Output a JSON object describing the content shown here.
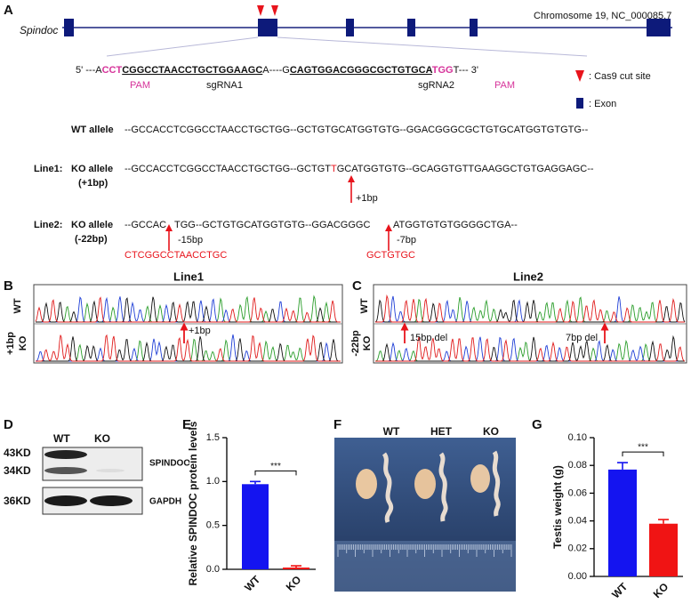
{
  "panel_labels": [
    "A",
    "B",
    "C",
    "D",
    "E",
    "F",
    "G"
  ],
  "panel_a": {
    "gene": "Spindoc",
    "chromosome": "Chromosome 19, NC_000085.7",
    "sequence": [
      "5' ---A",
      "CCT",
      "CGGCCTAACCTGCTGGAAGC",
      "A----G",
      "CAGTGGACGGGCGCTGTGCA",
      "TGG",
      "T---  3'"
    ],
    "pam1": "PAM",
    "sgrna1": "sgRNA1",
    "sgrna2": "sgRNA2",
    "pam2": "PAM",
    "legend": [
      ": Cas9 cut site",
      ": Exon"
    ],
    "wt": {
      "label": "WT allele",
      "sequence": "--GCCACCTCGGCCTAACCTGCTGG--GCTGTGCATGGTGTG--GGACGGGCGCTGTGCATGGTGTGTG--"
    },
    "line1": {
      "line": "Line1:",
      "label": "KO allele",
      "sublabel": "(+1bp)",
      "sequence": [
        "--GCCACCTCGGCCTAACCTGCTGG--GCTGT",
        "T",
        "GCATGGTGTG--GCAGGTGTTGAAGGCTGTGAGGAGC--"
      ],
      "note": "+1bp"
    },
    "line2": {
      "line": "Line2:",
      "label": "KO allele",
      "sublabel": "(-22bp)",
      "sequence": [
        "--GCCAC",
        "TGG--GCTGTGCATGGTGTG--GGACGGGC",
        "ATGGTGTGTGGGGCTGA--"
      ],
      "notes": [
        "-15bp",
        "-7bp"
      ],
      "deleted": [
        "CTCGGCCTAACCTGC",
        "GCTGTGC"
      ]
    }
  },
  "panel_b": {
    "title": "Line1",
    "rows": [
      "WT",
      "+1bp",
      "KO"
    ],
    "note": "+1bp"
  },
  "panel_c": {
    "title": "Line2",
    "rows": [
      "WT",
      "-22bp",
      "KO"
    ],
    "notes": [
      "15bp del",
      "7bp del"
    ]
  },
  "panel_d": {
    "lanes": [
      "WT",
      "KO"
    ],
    "markers": [
      "43KD",
      "34KD",
      "36KD"
    ],
    "proteins": [
      "SPINDOC",
      "GAPDH"
    ]
  },
  "panel_f": {
    "groups": [
      "WT",
      "HET",
      "KO"
    ]
  },
  "chart_data": [
    {
      "type": "bar",
      "y_label": "Relative SPINDOC protein levels",
      "categories": [
        "WT",
        "KO"
      ],
      "values": [
        0.97,
        0.02
      ],
      "errors": [
        0.03,
        0.02
      ],
      "colors": [
        "#1414f0",
        "#f01414"
      ],
      "ylim": [
        0,
        1.5
      ],
      "yticks": [
        {
          "value": 0,
          "label": "0.0"
        },
        {
          "value": 0.5,
          "label": "0.5"
        },
        {
          "value": 1,
          "label": "1.0"
        },
        {
          "value": 1.5,
          "label": "1.5"
        }
      ],
      "significance": "***"
    },
    {
      "type": "bar",
      "y_label": "Testis weight (g)",
      "categories": [
        "WT",
        "KO"
      ],
      "values": [
        0.077,
        0.038
      ],
      "errors": [
        0.005,
        0.003
      ],
      "colors": [
        "#1414f0",
        "#f01414"
      ],
      "ylim": [
        0,
        0.1
      ],
      "yticks": [
        {
          "value": 0,
          "label": "0.00"
        },
        {
          "value": 0.02,
          "label": "0.02"
        },
        {
          "value": 0.04,
          "label": "0.04"
        },
        {
          "value": 0.06,
          "label": "0.06"
        },
        {
          "value": 0.08,
          "label": "0.08"
        },
        {
          "value": 0.1,
          "label": "0.10"
        }
      ],
      "significance": "***"
    }
  ]
}
